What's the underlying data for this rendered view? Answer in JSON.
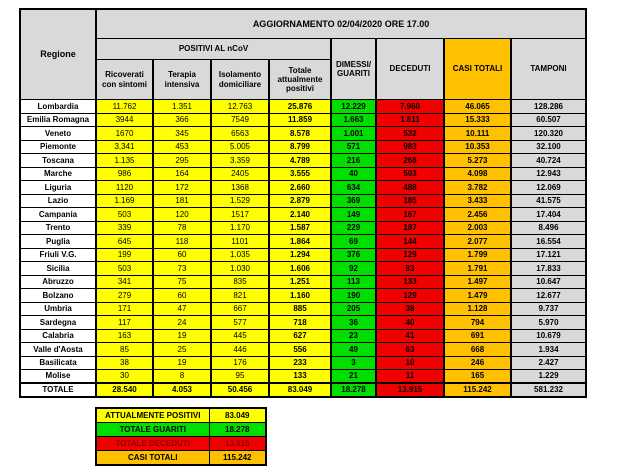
{
  "colors": {
    "header_gray": "#D9D9D9",
    "yellow": "#FFFF00",
    "green": "#00DF00",
    "red": "#F10000",
    "orange": "#FFC000",
    "tamponi_gray": "#D9D9D9",
    "deceduti_text": "#8B0000",
    "border": "#000000"
  },
  "chart_data": {
    "type": "table",
    "title": "AGGIORNAMENTO 02/04/2020 ORE 17.00",
    "group_header": "POSITIVI AL nCoV",
    "columns": [
      "Regione",
      "Ricoverati con sintomi",
      "Terapia intensiva",
      "Isolamento domiciliare",
      "Totale attualmente positivi",
      "DIMESSI/ GUARITI",
      "DECEDUTI",
      "CASI TOTALI",
      "TAMPONI"
    ],
    "rows": [
      {
        "regione": "Lombardia",
        "values": [
          "11.762",
          "1.351",
          "12.763",
          "25.876",
          "12.229",
          "7.960",
          "46.065",
          "128.286"
        ]
      },
      {
        "regione": "Emilia Romagna",
        "values": [
          "3944",
          "366",
          "7549",
          "11.859",
          "1.663",
          "1.811",
          "15.333",
          "60.507"
        ]
      },
      {
        "regione": "Veneto",
        "values": [
          "1670",
          "345",
          "6563",
          "8.578",
          "1.001",
          "532",
          "10.111",
          "120.320"
        ]
      },
      {
        "regione": "Piemonte",
        "values": [
          "3.341",
          "453",
          "5.005",
          "8.799",
          "571",
          "983",
          "10.353",
          "32.100"
        ]
      },
      {
        "regione": "Toscana",
        "values": [
          "1.135",
          "295",
          "3.359",
          "4.789",
          "216",
          "268",
          "5.273",
          "40.724"
        ]
      },
      {
        "regione": "Marche",
        "values": [
          "986",
          "164",
          "2405",
          "3.555",
          "40",
          "503",
          "4.098",
          "12.943"
        ]
      },
      {
        "regione": "Liguria",
        "values": [
          "1120",
          "172",
          "1368",
          "2.660",
          "634",
          "488",
          "3.782",
          "12.069"
        ]
      },
      {
        "regione": "Lazio",
        "values": [
          "1.169",
          "181",
          "1.529",
          "2.879",
          "369",
          "185",
          "3.433",
          "41.575"
        ]
      },
      {
        "regione": "Campania",
        "values": [
          "503",
          "120",
          "1517",
          "2.140",
          "149",
          "167",
          "2.456",
          "17.404"
        ]
      },
      {
        "regione": "Trento",
        "values": [
          "339",
          "78",
          "1.170",
          "1.587",
          "229",
          "187",
          "2.003",
          "8.496"
        ]
      },
      {
        "regione": "Puglia",
        "values": [
          "645",
          "118",
          "1101",
          "1.864",
          "69",
          "144",
          "2.077",
          "16.554"
        ]
      },
      {
        "regione": "Friuli V.G.",
        "values": [
          "199",
          "60",
          "1.035",
          "1.294",
          "376",
          "129",
          "1.799",
          "17.121"
        ]
      },
      {
        "regione": "Sicilia",
        "values": [
          "503",
          "73",
          "1.030",
          "1.606",
          "92",
          "93",
          "1.791",
          "17.833"
        ]
      },
      {
        "regione": "Abruzzo",
        "values": [
          "341",
          "75",
          "835",
          "1.251",
          "113",
          "133",
          "1.497",
          "10.647"
        ]
      },
      {
        "regione": "Bolzano",
        "values": [
          "279",
          "60",
          "821",
          "1.160",
          "190",
          "129",
          "1.479",
          "12.677"
        ]
      },
      {
        "regione": "Umbria",
        "values": [
          "171",
          "47",
          "667",
          "885",
          "205",
          "38",
          "1.128",
          "9.737"
        ]
      },
      {
        "regione": "Sardegna",
        "values": [
          "117",
          "24",
          "577",
          "718",
          "36",
          "40",
          "794",
          "5.970"
        ]
      },
      {
        "regione": "Calabria",
        "values": [
          "163",
          "19",
          "445",
          "627",
          "23",
          "41",
          "691",
          "10.679"
        ]
      },
      {
        "regione": "Valle d'Aosta",
        "values": [
          "85",
          "25",
          "446",
          "556",
          "49",
          "63",
          "668",
          "1.934"
        ]
      },
      {
        "regione": "Basilicata",
        "values": [
          "38",
          "19",
          "176",
          "233",
          "3",
          "10",
          "246",
          "2.427"
        ]
      },
      {
        "regione": "Molise",
        "values": [
          "30",
          "8",
          "95",
          "133",
          "21",
          "11",
          "165",
          "1.229"
        ]
      }
    ],
    "totale": {
      "regione": "TOTALE",
      "values": [
        "28.540",
        "4.053",
        "50.456",
        "83.049",
        "18.278",
        "13.915",
        "115.242",
        "581.232"
      ]
    },
    "summary": [
      {
        "label": "ATTUALMENTE POSITIVI",
        "value": "83.049",
        "color": "yellow"
      },
      {
        "label": "TOTALE GUARITI",
        "value": "18.278",
        "color": "green"
      },
      {
        "label": "TOTALE DECEDUTI",
        "value": "13.915",
        "color": "red"
      },
      {
        "label": "CASI TOTALI",
        "value": "115.242",
        "color": "orange"
      }
    ]
  }
}
